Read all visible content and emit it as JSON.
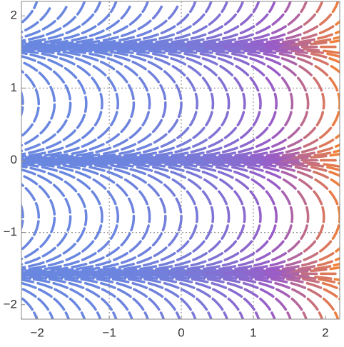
{
  "chart_data": {
    "type": "stream",
    "xlim": [
      -2.22,
      2.2
    ],
    "ylim": [
      -2.2,
      2.2
    ],
    "xticks": [
      {
        "value": -2,
        "label": "−2"
      },
      {
        "value": -1,
        "label": "−1"
      },
      0,
      1,
      2
    ],
    "yticks": [
      {
        "value": -2,
        "label": "−2"
      },
      {
        "value": -1,
        "label": "−1"
      },
      0,
      1,
      2
    ],
    "grid": true,
    "colors": [
      "#6a87e0",
      "#9a5cc6",
      "#f0803a"
    ]
  }
}
